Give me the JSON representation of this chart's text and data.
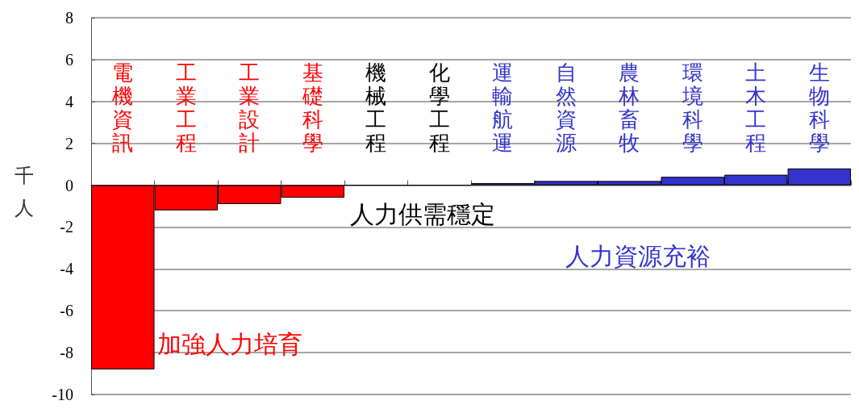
{
  "chart_data": {
    "type": "bar",
    "ylabel": "千人",
    "categories": [
      "電機資訊",
      "工業工程",
      "工業設計",
      "基礎科學",
      "機械工程",
      "化學工程",
      "運輸航運",
      "自然資源",
      "農林畜牧",
      "環境科學",
      "土木工程",
      "生物科學"
    ],
    "series": [
      {
        "name": "加強人力培育",
        "color": "#ff0000",
        "values": [
          -8.8,
          -1.2,
          -0.9,
          -0.6,
          null,
          null,
          null,
          null,
          null,
          null,
          null,
          null
        ]
      },
      {
        "name": "人力供需穩定",
        "color": "#000000",
        "values": [
          null,
          null,
          null,
          null,
          0,
          0,
          null,
          null,
          null,
          null,
          null,
          null
        ]
      },
      {
        "name": "人力資源充裕",
        "color": "#3333cc",
        "values": [
          null,
          null,
          null,
          null,
          null,
          null,
          0.1,
          0.2,
          0.2,
          0.4,
          0.5,
          0.8
        ]
      }
    ],
    "ylim": [
      -10,
      8
    ],
    "yticks": [
      -10,
      -8,
      -6,
      -4,
      -2,
      0,
      2,
      4,
      6,
      8
    ],
    "grid": "y",
    "legend": false
  }
}
